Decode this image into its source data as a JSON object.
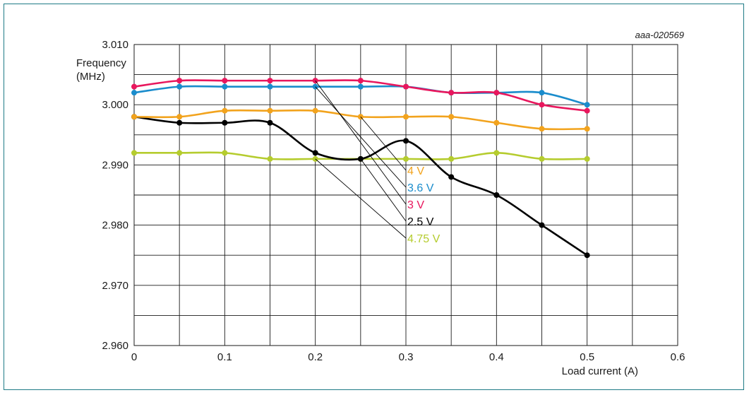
{
  "chart_data": {
    "type": "line",
    "figure_id": "aaa-020569",
    "title": "",
    "ylabel_line1": "Frequency",
    "ylabel_line2": "(MHz)",
    "xlabel": "Load current (A)",
    "xlim": [
      0,
      0.6
    ],
    "ylim": [
      2.96,
      3.01
    ],
    "x_ticks": [
      0,
      0.1,
      0.2,
      0.3,
      0.4,
      0.5,
      0.6
    ],
    "x_tick_labels": [
      "0",
      "0.1",
      "0.2",
      "0.3",
      "0.4",
      "0.5",
      "0.6"
    ],
    "x_minor_grid": [
      0.05,
      0.15,
      0.25,
      0.35,
      0.45,
      0.55
    ],
    "y_ticks": [
      2.96,
      2.97,
      2.98,
      2.99,
      3.0,
      3.01
    ],
    "y_tick_labels": [
      "2.960",
      "2.970",
      "2.980",
      "2.990",
      "3.000",
      "3.010"
    ],
    "y_minor_grid": [
      2.965,
      2.975,
      2.985,
      2.995,
      3.005
    ],
    "grid": true,
    "x": [
      0,
      0.05,
      0.1,
      0.15,
      0.2,
      0.25,
      0.3,
      0.35,
      0.4,
      0.45,
      0.5
    ],
    "series": [
      {
        "name": "4.75 V",
        "color": "#b5cc2e",
        "values": [
          2.992,
          2.992,
          2.992,
          2.991,
          2.991,
          2.991,
          2.991,
          2.991,
          2.992,
          2.991,
          2.991
        ],
        "leader_from_x": 0.2
      },
      {
        "name": "2.5 V",
        "color": "#000000",
        "values": [
          2.998,
          2.997,
          2.997,
          2.997,
          2.992,
          2.991,
          2.994,
          2.988,
          2.985,
          2.98,
          2.975
        ],
        "leader_from_x": 0.25
      },
      {
        "name": "4 V",
        "color": "#f2a31d",
        "values": [
          2.998,
          2.998,
          2.999,
          2.999,
          2.999,
          2.998,
          2.998,
          2.998,
          2.997,
          2.996,
          2.996
        ],
        "leader_from_x": 0.25
      },
      {
        "name": "3.6 V",
        "color": "#1a8ccc",
        "values": [
          3.002,
          3.003,
          3.003,
          3.003,
          3.003,
          3.003,
          3.003,
          3.002,
          3.002,
          3.002,
          3.0
        ],
        "leader_from_x": 0.2
      },
      {
        "name": "3 V",
        "color": "#e8175d",
        "values": [
          3.003,
          3.004,
          3.004,
          3.004,
          3.004,
          3.004,
          3.003,
          3.002,
          3.002,
          3.0,
          2.999
        ],
        "leader_from_x": 0.2
      }
    ],
    "legend_order": [
      "4 V",
      "3.6 V",
      "3 V",
      "2.5 V",
      "4.75 V"
    ],
    "legend_placement": "inside, center, with leader lines"
  }
}
